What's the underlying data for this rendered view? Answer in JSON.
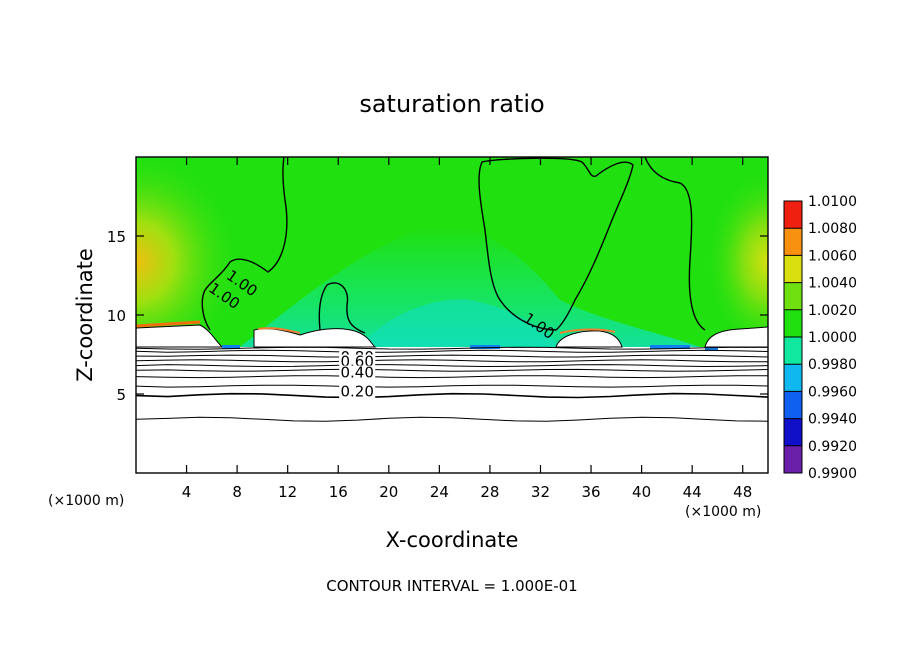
{
  "chart_data": {
    "type": "heatmap",
    "title": "saturation ratio",
    "xlabel": "X-coordinate",
    "ylabel": "Z-coordinate",
    "x_unit": "(×1000 m)",
    "y_unit": "(×1000 m)",
    "xlim": [
      0,
      50
    ],
    "ylim": [
      0,
      20
    ],
    "x_ticks": [
      4,
      8,
      12,
      16,
      20,
      24,
      28,
      32,
      36,
      40,
      44,
      48
    ],
    "y_ticks": [
      5,
      10,
      15
    ],
    "colorbar": {
      "min": 0.99,
      "max": 1.01,
      "ticks": [
        "0.9900",
        "0.9920",
        "0.9940",
        "0.9960",
        "0.9980",
        "1.0000",
        "1.0020",
        "1.0040",
        "1.0060",
        "1.0080",
        "1.0100"
      ],
      "colors": [
        "#6a1fa8",
        "#1010c8",
        "#1060f0",
        "#10b8f0",
        "#10e8a0",
        "#20e010",
        "#70e010",
        "#d8e010",
        "#f89010",
        "#f02010",
        "#f0a0a0"
      ]
    },
    "contour_labels": [
      {
        "text": "1.00",
        "x": 6.8,
        "z": 11.0
      },
      {
        "text": "1.00",
        "x": 8.2,
        "z": 11.8
      },
      {
        "text": "1.00",
        "x": 31.7,
        "z": 9.1
      },
      {
        "text": "0.80",
        "x": 17.5,
        "z": 7.1
      },
      {
        "text": "0.60",
        "x": 17.5,
        "z": 6.8
      },
      {
        "text": "0.40",
        "x": 17.5,
        "z": 6.1
      },
      {
        "text": "0.20",
        "x": 17.5,
        "z": 4.9
      }
    ],
    "contour_levels_below": [
      0.9,
      0.8,
      0.7,
      0.6,
      0.5,
      0.4,
      0.3,
      0.2,
      0.1
    ],
    "grid": false
  },
  "footer": "CONTOUR INTERVAL = 1.000E-01"
}
